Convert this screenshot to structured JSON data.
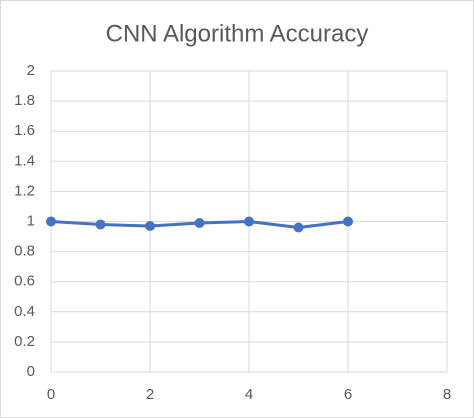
{
  "chart_data": {
    "type": "line",
    "title": "CNN Algorithm Accuracy",
    "x": [
      0,
      1,
      2,
      3,
      4,
      5,
      6
    ],
    "values": [
      1.0,
      0.98,
      0.97,
      0.99,
      1.0,
      0.96,
      1.0
    ],
    "color": "#4472c4",
    "xlim": [
      0,
      8
    ],
    "xticks": [
      0,
      2,
      4,
      6,
      8
    ],
    "ylim": [
      0,
      2
    ],
    "yticks": [
      0,
      0.2,
      0.4,
      0.6,
      0.8,
      1,
      1.2,
      1.4,
      1.6,
      1.8,
      2
    ],
    "grid": true
  }
}
